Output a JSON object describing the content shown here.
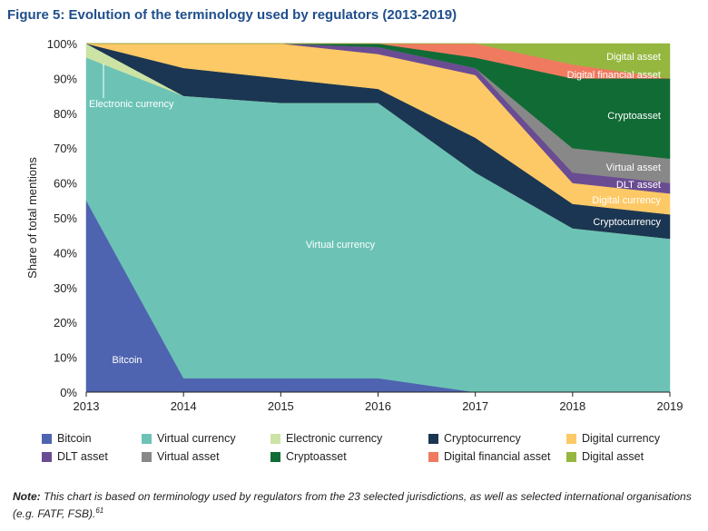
{
  "figure": {
    "title": "Figure 5: Evolution of the terminology used by regulators (2013-2019)",
    "note_label": "Note:",
    "note_text": "This chart is based on terminology used by regulators from the 23 selected jurisdictions, as well as selected international organisations (e.g. FATF, FSB).",
    "note_ref": "61"
  },
  "chart_data": {
    "type": "area",
    "stacked": true,
    "x": [
      "2013",
      "2014",
      "2015",
      "2016",
      "2017",
      "2018",
      "2019"
    ],
    "ylabel": "Share of total mentions",
    "xlabel": "",
    "ylim": [
      0,
      100
    ],
    "yticks": [
      "0%",
      "10%",
      "20%",
      "30%",
      "40%",
      "50%",
      "60%",
      "70%",
      "80%",
      "90%",
      "100%"
    ],
    "legend_position": "bottom",
    "series": [
      {
        "name": "Bitcoin",
        "color": "#4f64b0",
        "values": [
          55,
          4,
          4,
          4,
          0,
          0,
          0
        ]
      },
      {
        "name": "Virtual currency",
        "color": "#6cc3b5",
        "values": [
          41,
          81,
          79,
          79,
          63,
          47,
          44
        ]
      },
      {
        "name": "Electronic currency",
        "color": "#cce3a5",
        "values": [
          4,
          0,
          0,
          0,
          0,
          0,
          0
        ]
      },
      {
        "name": "Cryptocurrency",
        "color": "#1b3652",
        "values": [
          0,
          8,
          7,
          4,
          10,
          7,
          7
        ]
      },
      {
        "name": "Digital currency",
        "color": "#fdc966",
        "values": [
          0,
          7,
          10,
          10,
          18,
          6,
          6
        ]
      },
      {
        "name": "DLT asset",
        "color": "#6a4c93",
        "values": [
          0,
          0,
          0,
          2,
          2,
          3,
          3
        ]
      },
      {
        "name": "Virtual asset",
        "color": "#888888",
        "values": [
          0,
          0,
          0,
          0,
          0,
          7,
          7
        ]
      },
      {
        "name": "Cryptoasset",
        "color": "#116b35",
        "values": [
          0,
          0,
          0,
          1,
          3,
          20,
          23
        ]
      },
      {
        "name": "Digital financial asset",
        "color": "#f07a60",
        "values": [
          0,
          0,
          0,
          0,
          4,
          4,
          0
        ]
      },
      {
        "name": "Digital asset",
        "color": "#95b740",
        "values": [
          0,
          0,
          0,
          0,
          0,
          6,
          10
        ]
      }
    ],
    "annotations": [
      "Bitcoin",
      "Virtual currency",
      "Electronic currency",
      "Cryptocurrency",
      "Digital currency",
      "DLT asset",
      "Virtual asset",
      "Cryptoasset",
      "Digital financial asset",
      "Digital asset"
    ]
  }
}
